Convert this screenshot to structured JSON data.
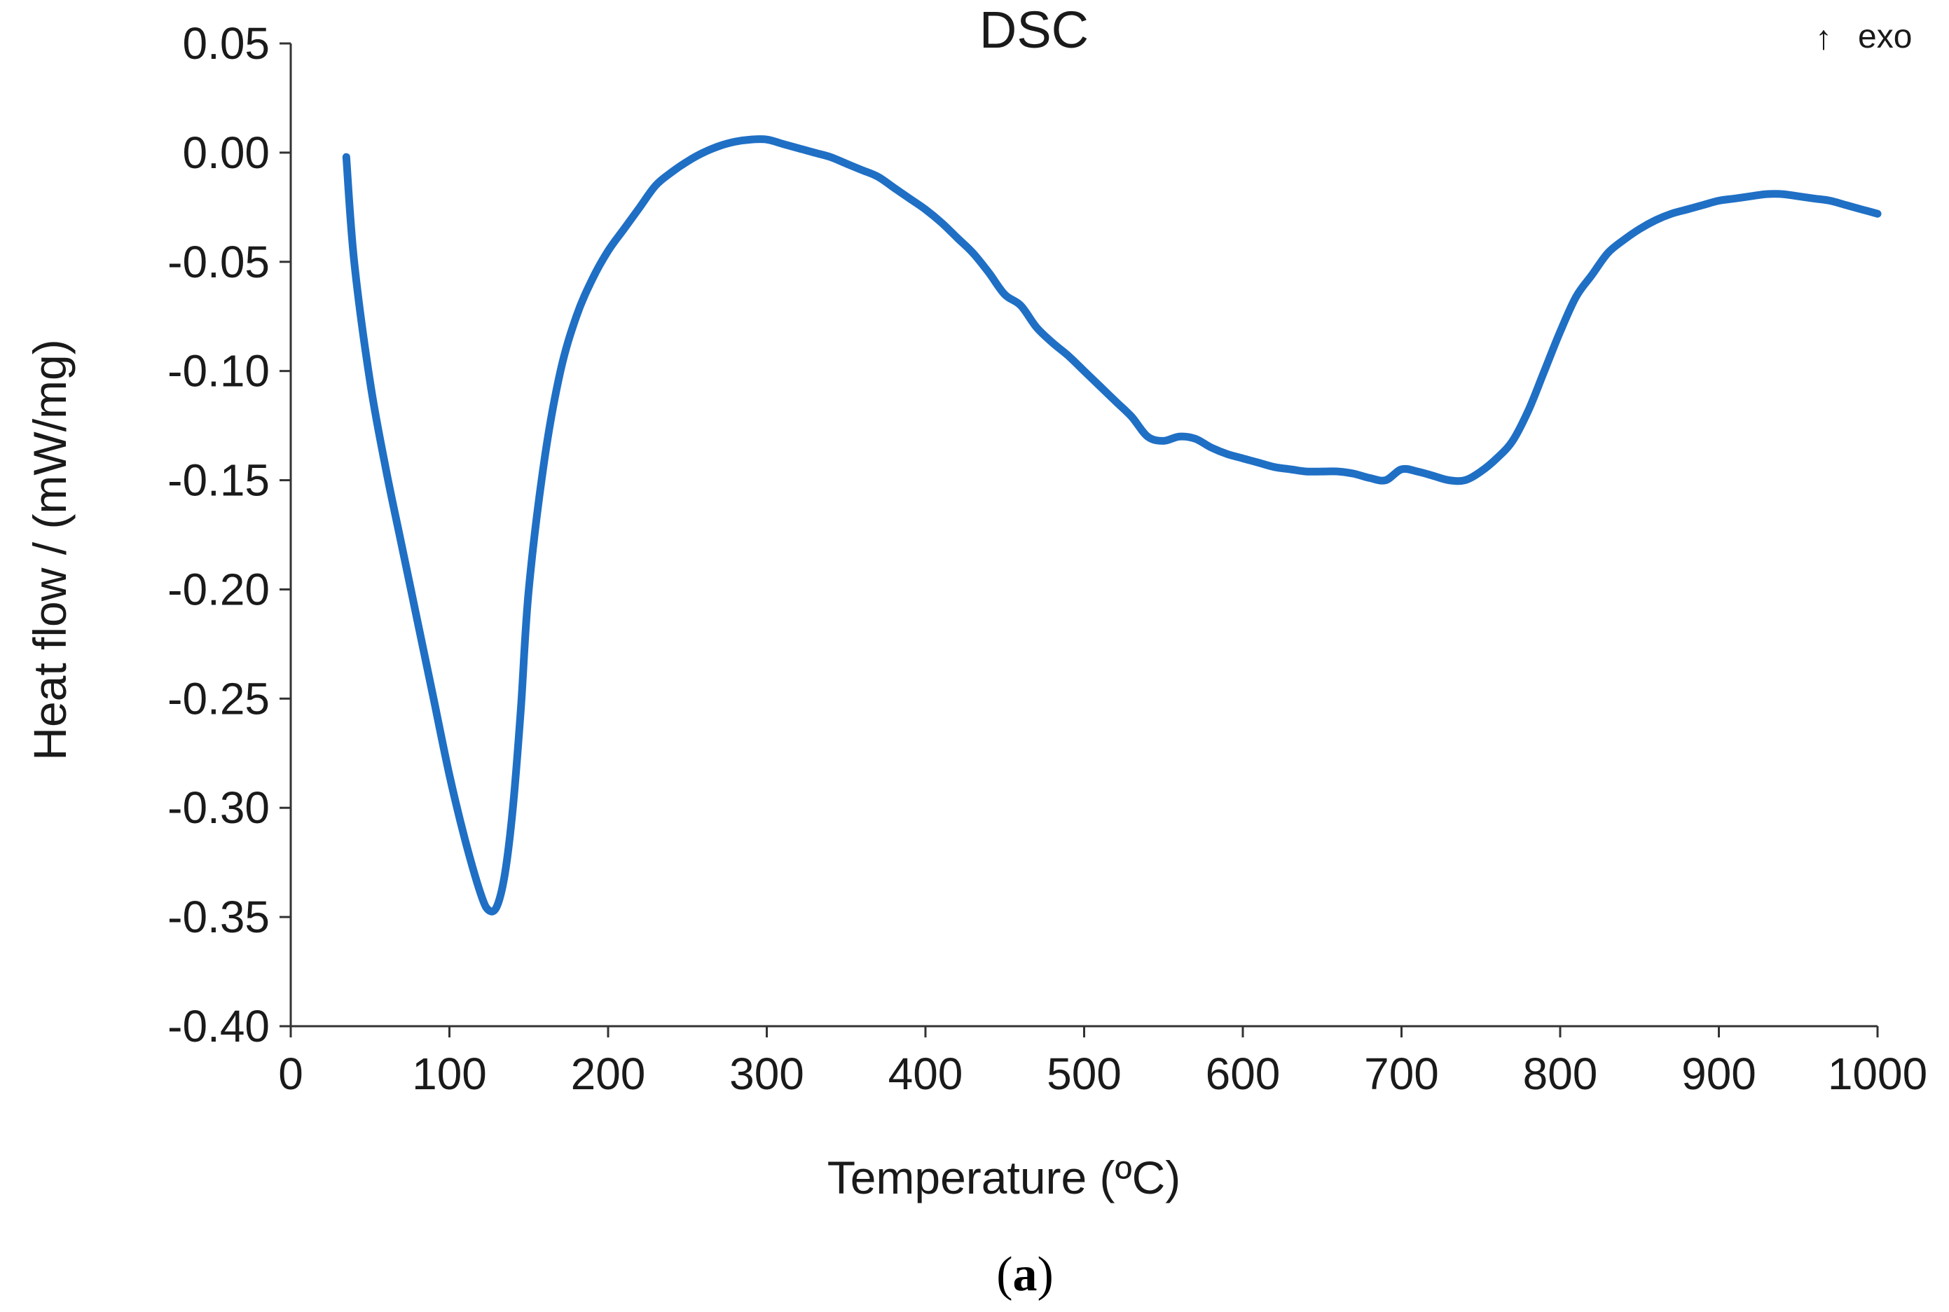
{
  "chart_data": {
    "type": "line",
    "title": "DSC",
    "xlabel": "Temperature (ºC)",
    "ylabel": "Heat flow / (mW/mg)",
    "annotation_arrow": "↑",
    "annotation_text": "exo",
    "panel_label_open": "(",
    "panel_label": "a",
    "panel_label_close": ")",
    "xlim": [
      0,
      1000
    ],
    "ylim": [
      -0.4,
      0.05
    ],
    "x_ticks": [
      0,
      100,
      200,
      300,
      400,
      500,
      600,
      700,
      800,
      900,
      1000
    ],
    "x_tick_labels": [
      "0",
      "100",
      "200",
      "300",
      "400",
      "500",
      "600",
      "700",
      "800",
      "900",
      "1000"
    ],
    "y_ticks": [
      0.05,
      0.0,
      -0.05,
      -0.1,
      -0.15,
      -0.2,
      -0.25,
      -0.3,
      -0.35,
      -0.4
    ],
    "y_tick_labels": [
      "0.05",
      "0.00",
      "-0.05",
      "-0.10",
      "-0.15",
      "-0.20",
      "-0.25",
      "-0.30",
      "-0.35",
      "-0.40"
    ],
    "grid": false,
    "series": [
      {
        "name": "DSC",
        "color": "#1f6fc5",
        "x": [
          35,
          40,
          50,
          60,
          70,
          80,
          90,
          100,
          110,
          120,
          125,
          130,
          135,
          140,
          145,
          150,
          160,
          170,
          180,
          190,
          200,
          210,
          220,
          230,
          240,
          250,
          260,
          270,
          280,
          290,
          300,
          310,
          320,
          330,
          340,
          350,
          360,
          370,
          380,
          390,
          400,
          410,
          420,
          430,
          440,
          450,
          460,
          470,
          480,
          490,
          500,
          510,
          520,
          530,
          540,
          550,
          560,
          570,
          580,
          590,
          600,
          610,
          620,
          630,
          640,
          650,
          660,
          670,
          680,
          690,
          700,
          710,
          720,
          730,
          740,
          750,
          760,
          770,
          780,
          790,
          800,
          810,
          820,
          830,
          840,
          850,
          860,
          870,
          880,
          890,
          900,
          910,
          920,
          930,
          940,
          950,
          960,
          970,
          980,
          990,
          1000
        ],
        "y": [
          -0.002,
          -0.05,
          -0.105,
          -0.145,
          -0.18,
          -0.215,
          -0.25,
          -0.285,
          -0.315,
          -0.34,
          -0.347,
          -0.345,
          -0.33,
          -0.3,
          -0.255,
          -0.2,
          -0.14,
          -0.1,
          -0.075,
          -0.058,
          -0.045,
          -0.035,
          -0.025,
          -0.015,
          -0.009,
          -0.004,
          0.0,
          0.003,
          0.005,
          0.006,
          0.006,
          0.004,
          0.002,
          0.0,
          -0.002,
          -0.005,
          -0.008,
          -0.011,
          -0.016,
          -0.021,
          -0.026,
          -0.032,
          -0.039,
          -0.046,
          -0.055,
          -0.065,
          -0.07,
          -0.08,
          -0.087,
          -0.093,
          -0.1,
          -0.107,
          -0.114,
          -0.121,
          -0.13,
          -0.132,
          -0.13,
          -0.131,
          -0.135,
          -0.138,
          -0.14,
          -0.142,
          -0.144,
          -0.145,
          -0.146,
          -0.146,
          -0.146,
          -0.147,
          -0.149,
          -0.15,
          -0.145,
          -0.146,
          -0.148,
          -0.15,
          -0.15,
          -0.146,
          -0.14,
          -0.132,
          -0.118,
          -0.1,
          -0.082,
          -0.066,
          -0.056,
          -0.046,
          -0.04,
          -0.035,
          -0.031,
          -0.028,
          -0.026,
          -0.024,
          -0.022,
          -0.021,
          -0.02,
          -0.019,
          -0.019,
          -0.02,
          -0.021,
          -0.022,
          -0.024,
          -0.026,
          -0.028
        ]
      }
    ]
  }
}
